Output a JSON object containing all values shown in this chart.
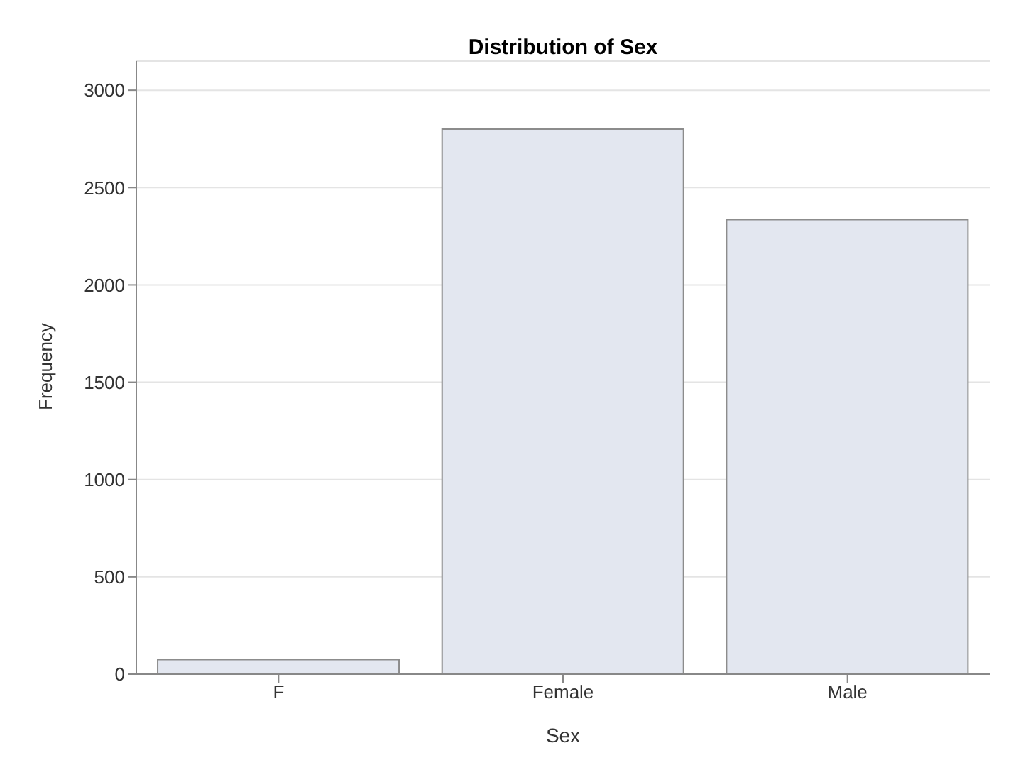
{
  "chart_data": {
    "type": "bar",
    "title": "Distribution of Sex",
    "xlabel": "Sex",
    "ylabel": "Frequency",
    "categories": [
      "F",
      "Female",
      "Male"
    ],
    "values": [
      75,
      2800,
      2335
    ],
    "color": "#e3e7f0",
    "ylim": [
      0,
      3150
    ],
    "yticks": [
      0,
      500,
      1000,
      1500,
      2000,
      2500,
      3000
    ],
    "grid": "y",
    "legend": false
  }
}
